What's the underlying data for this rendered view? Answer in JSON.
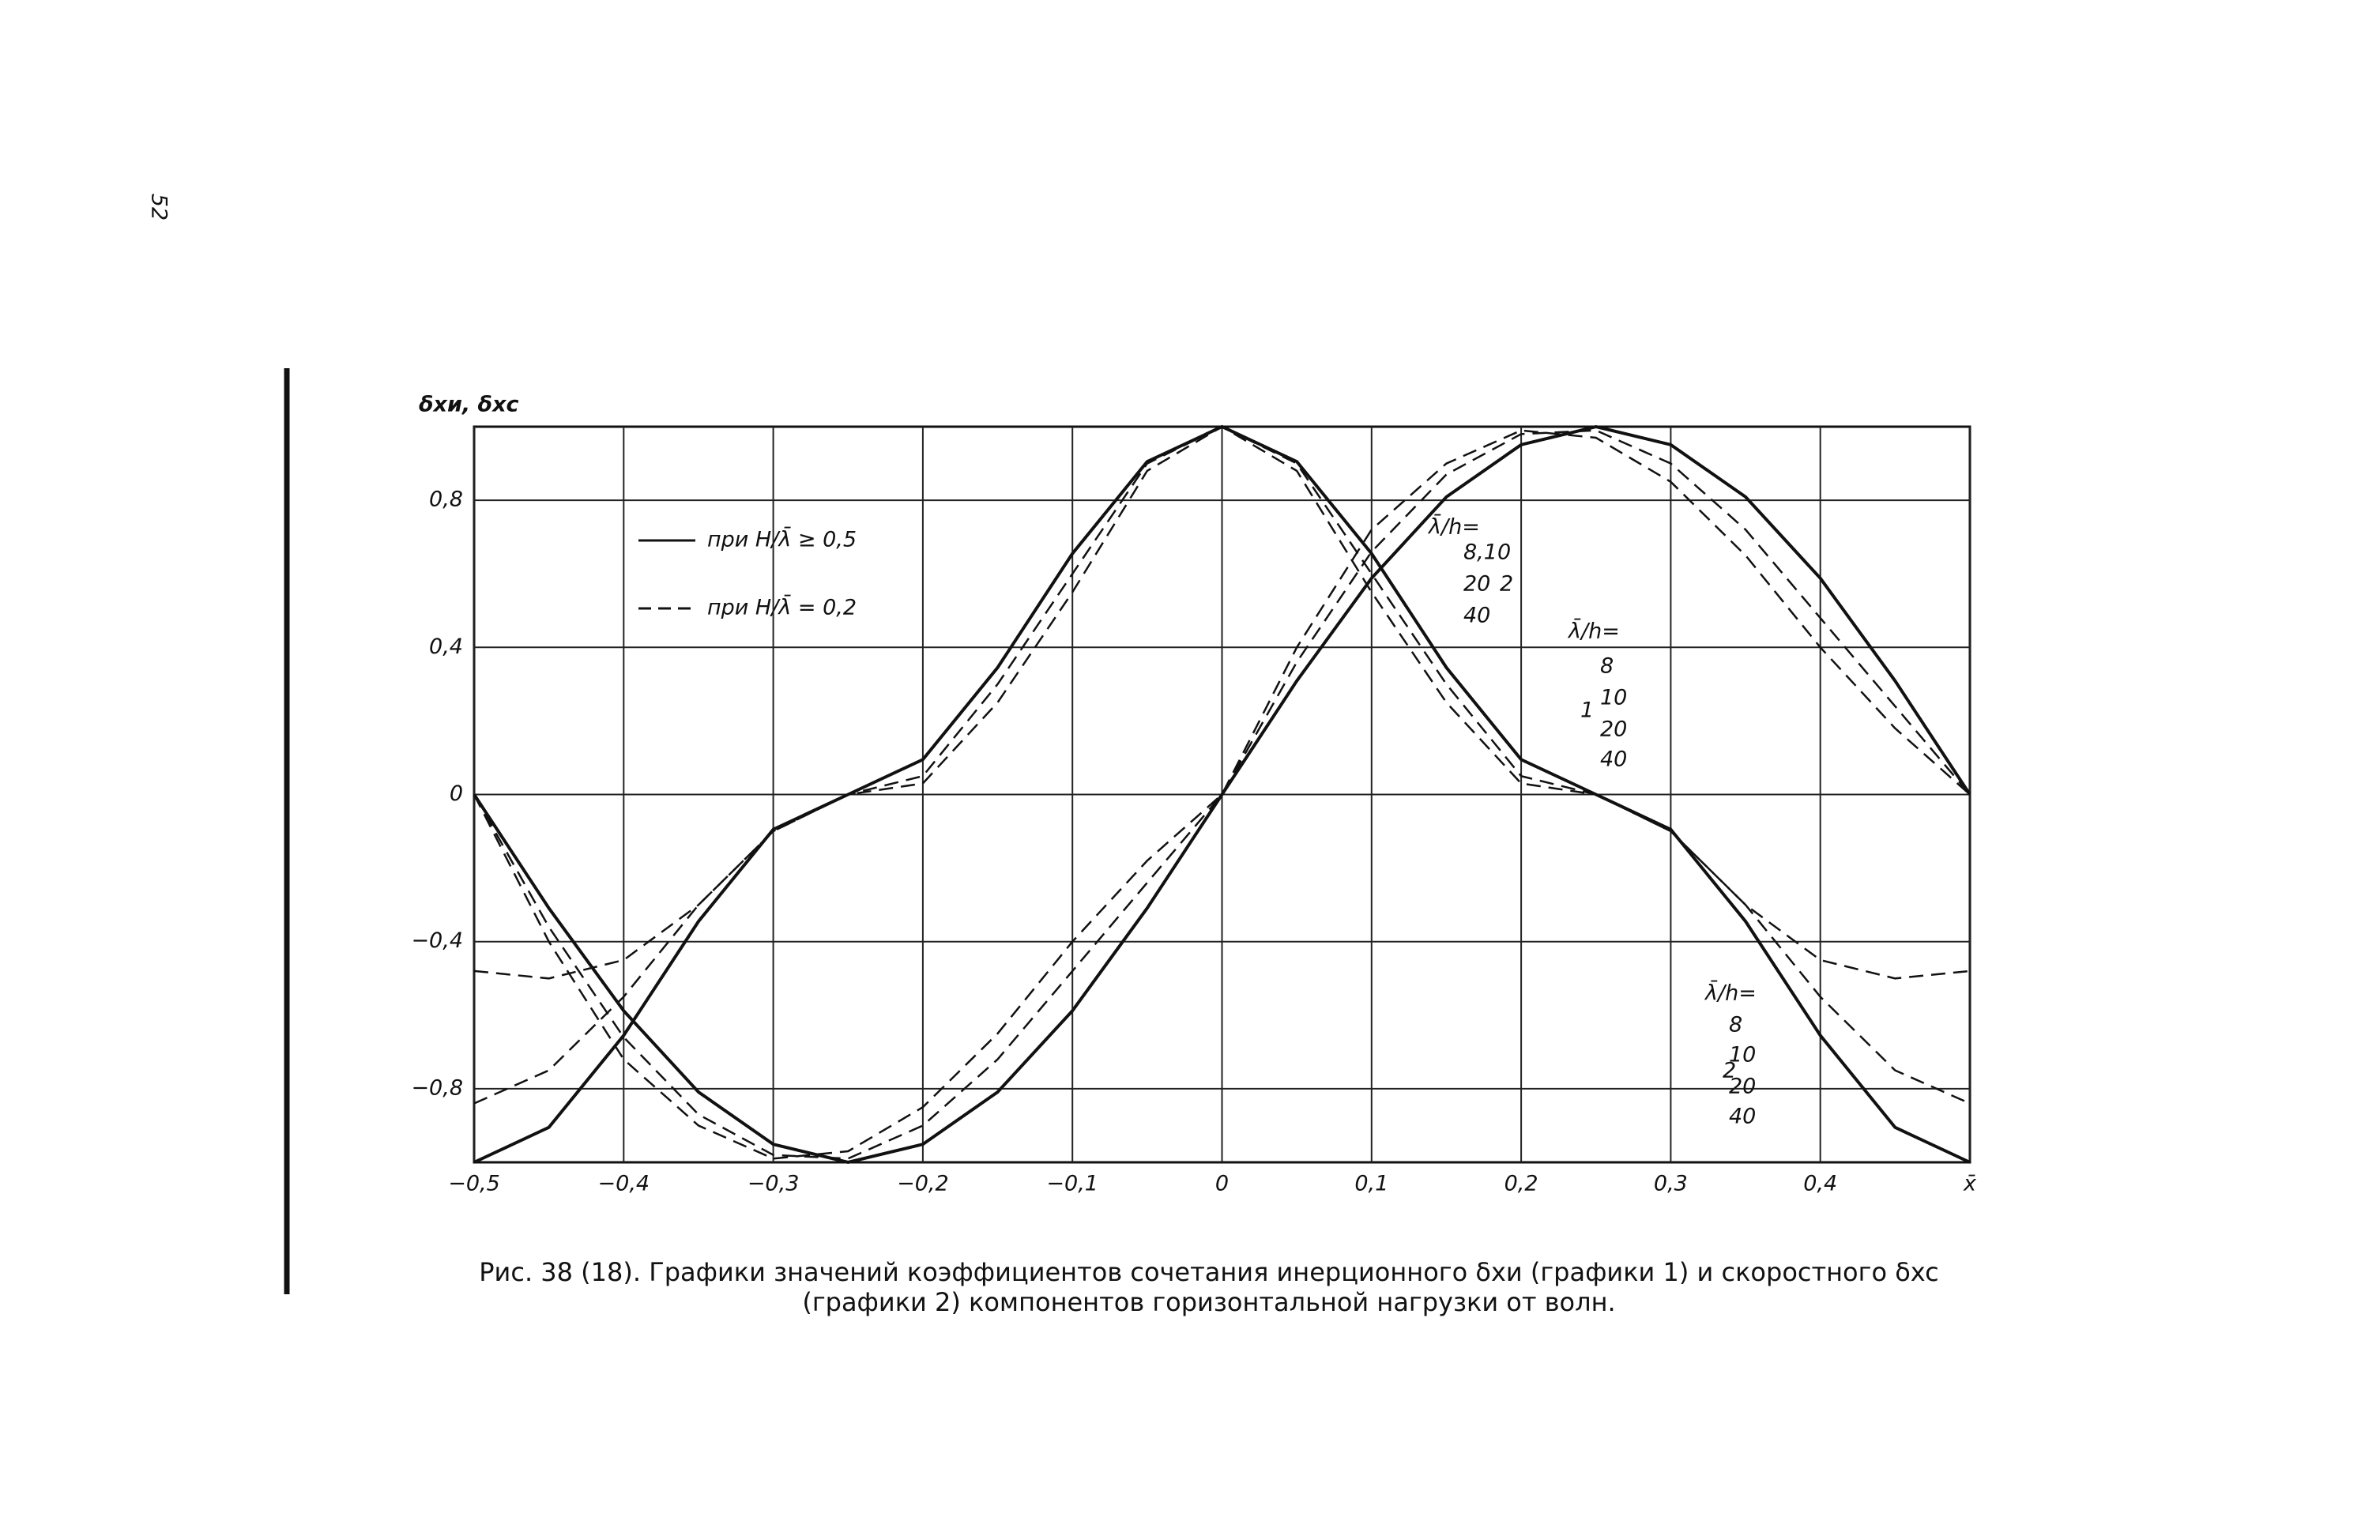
{
  "page_number": "52",
  "chart_data": {
    "type": "line",
    "y_label": "δxи, δxc",
    "caption": [
      "Рис. 38 (18). Графики значений коэффициентов сочетания инерционного δxи (графики 1) и скоростного δxc",
      "(графики 2) компонентов горизонтальной нагрузки от волн."
    ],
    "legend": [
      "при H/λ̄ ≥ 0,5",
      "при H/λ̄ = 0,2"
    ],
    "annotations": [
      "λ̄/h=",
      "8,10",
      "20",
      "40",
      "2",
      "λ̄/h=",
      "8",
      "10",
      "20",
      "40",
      "1",
      "λ̄/h=",
      "8",
      "10",
      "20",
      "40",
      "2"
    ],
    "xlim": [
      -0.5,
      0.5
    ],
    "ylim": [
      -1,
      1
    ],
    "grid": true,
    "xticks": [
      {
        "value": -0.5,
        "label": "−0,5"
      },
      {
        "value": -0.4,
        "label": "−0,4"
      },
      {
        "value": -0.3,
        "label": "−0,3"
      },
      {
        "value": -0.2,
        "label": "−0,2"
      },
      {
        "value": -0.1,
        "label": "−0,1"
      },
      0,
      {
        "value": 0.1,
        "label": "0,1"
      },
      {
        "value": 0.2,
        "label": "0,2"
      },
      {
        "value": 0.3,
        "label": "0,3"
      },
      {
        "value": 0.4,
        "label": "0,4"
      },
      {
        "value": 0.5,
        "label": "x̄"
      }
    ],
    "yticks": [
      {
        "value": -0.8,
        "label": "−0,8"
      },
      {
        "value": -0.4,
        "label": "−0,4"
      },
      0,
      {
        "value": 0.4,
        "label": "0,4"
      },
      {
        "value": 0.8,
        "label": "0,8"
      }
    ],
    "x": [
      -0.5,
      -0.45,
      -0.4,
      -0.35,
      -0.3,
      -0.25,
      -0.2,
      -0.15,
      -0.1,
      -0.05,
      0,
      0.05,
      0.1,
      0.15,
      0.2,
      0.25,
      0.3,
      0.35,
      0.4,
      0.45,
      0.5
    ],
    "series": [
      {
        "style": "solid",
        "color": "#111111",
        "values": [
          -1,
          -0.905,
          -0.655,
          -0.345,
          -0.095,
          0,
          0.095,
          0.345,
          0.655,
          0.905,
          1,
          0.905,
          0.655,
          0.345,
          0.095,
          0,
          -0.095,
          -0.345,
          -0.655,
          -0.905,
          -1
        ]
      },
      {
        "style": "solid",
        "color": "#111111",
        "values": [
          0,
          -0.309,
          -0.588,
          -0.809,
          -0.951,
          -1,
          -0.951,
          -0.809,
          -0.588,
          -0.309,
          0,
          0.309,
          0.588,
          0.809,
          0.951,
          1,
          0.951,
          0.809,
          0.588,
          0.309,
          0
        ]
      },
      {
        "style": "dashed",
        "color": "#111111",
        "values": [
          -0.48,
          -0.5,
          -0.45,
          -0.3,
          -0.1,
          0,
          0.03,
          0.25,
          0.55,
          0.88,
          1,
          0.88,
          0.55,
          0.25,
          0.03,
          0,
          -0.1,
          -0.3,
          -0.45,
          -0.5,
          -0.48
        ]
      },
      {
        "style": "dashed",
        "color": "#111111",
        "values": [
          -0.84,
          -0.75,
          -0.55,
          -0.3,
          -0.1,
          0,
          0.05,
          0.3,
          0.6,
          0.9,
          1,
          0.9,
          0.6,
          0.3,
          0.05,
          0,
          -0.1,
          -0.3,
          -0.55,
          -0.75,
          -0.84
        ]
      },
      {
        "style": "dashed",
        "color": "#111111",
        "values": [
          0,
          -0.4,
          -0.72,
          -0.9,
          -0.99,
          -0.97,
          -0.85,
          -0.65,
          -0.4,
          -0.18,
          0,
          0.4,
          0.72,
          0.9,
          0.99,
          0.97,
          0.85,
          0.65,
          0.4,
          0.18,
          0
        ]
      },
      {
        "style": "dashed",
        "color": "#111111",
        "values": [
          0,
          -0.36,
          -0.66,
          -0.87,
          -0.98,
          -0.99,
          -0.9,
          -0.72,
          -0.48,
          -0.24,
          0,
          0.36,
          0.66,
          0.87,
          0.98,
          0.99,
          0.9,
          0.72,
          0.48,
          0.24,
          0
        ]
      }
    ]
  }
}
